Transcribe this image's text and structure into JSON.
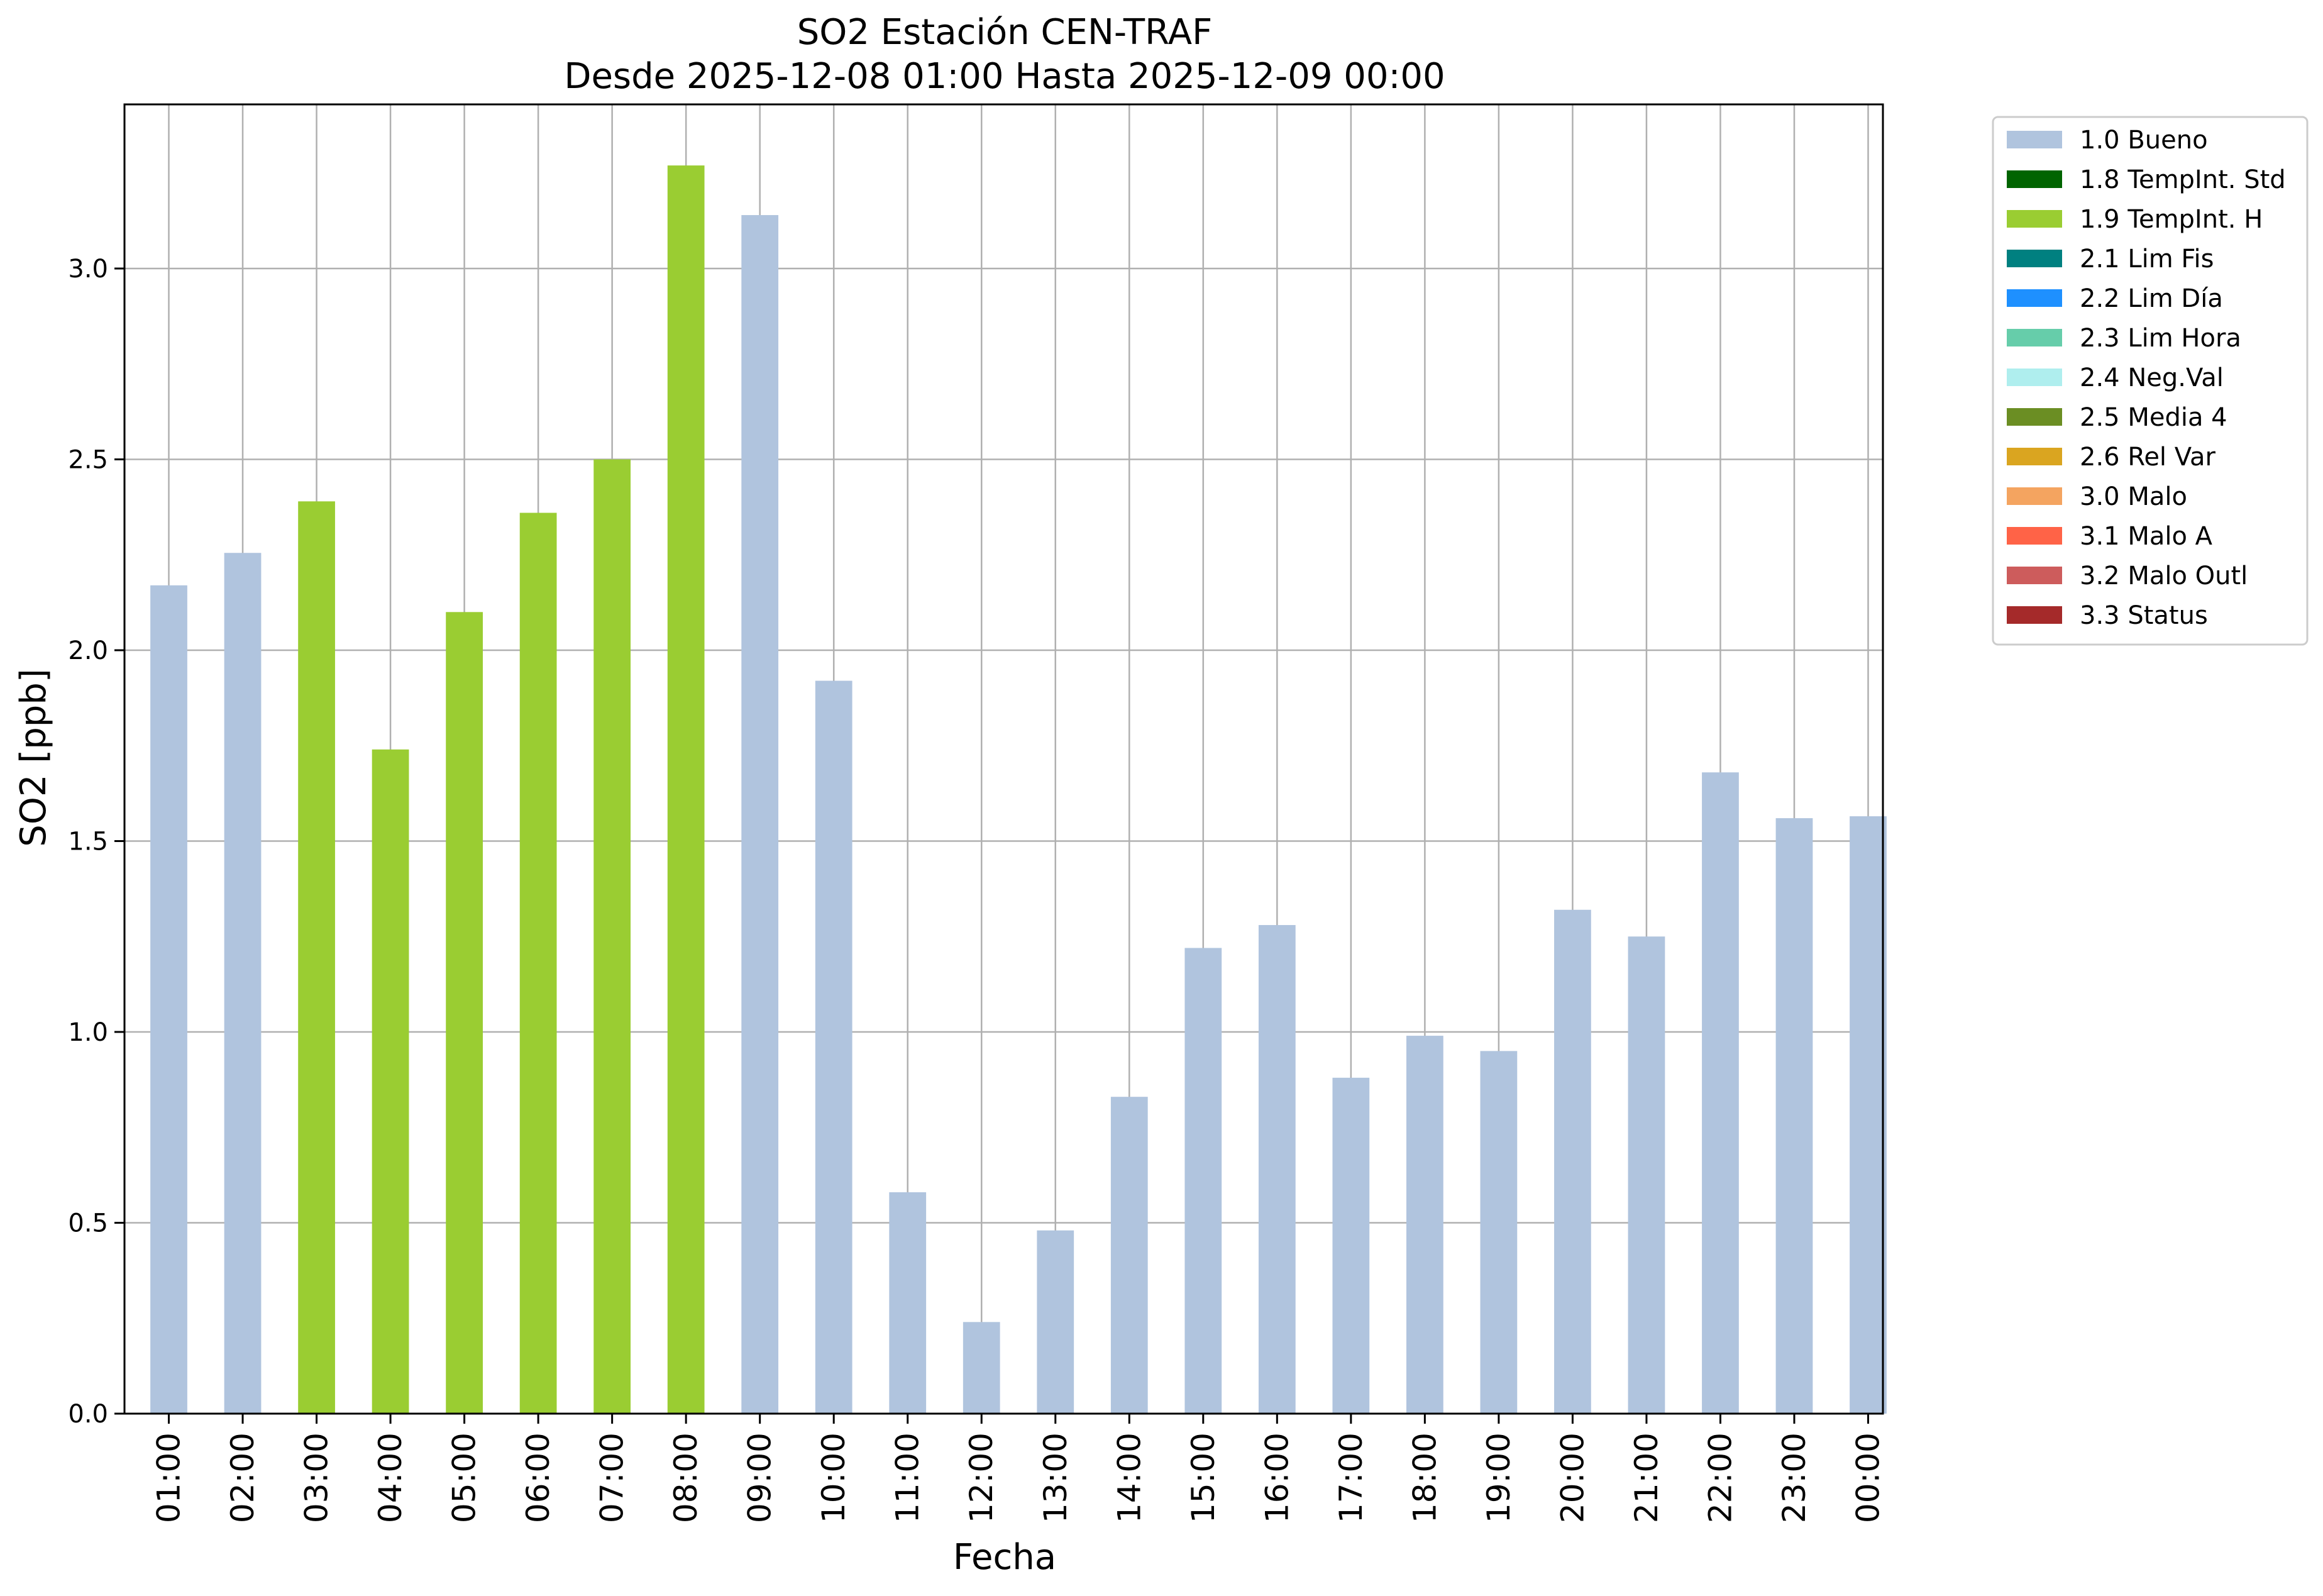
{
  "chart_data": {
    "type": "bar",
    "title": "SO2 Estación CEN-TRAF",
    "subtitle": "Desde 2025-12-08 01:00 Hasta 2025-12-09 00:00",
    "xlabel": "Fecha",
    "ylabel": "SO2 [ppb]",
    "ylim": [
      0,
      3.43
    ],
    "yticks": [
      "0.0",
      "0.5",
      "1.0",
      "1.5",
      "2.0",
      "2.5",
      "3.0"
    ],
    "ytick_values": [
      0,
      0.5,
      1.0,
      1.5,
      2.0,
      2.5,
      3.0
    ],
    "grid": true,
    "legend_position": "outside-right",
    "categories": [
      "01:00",
      "02:00",
      "03:00",
      "04:00",
      "05:00",
      "06:00",
      "07:00",
      "08:00",
      "09:00",
      "10:00",
      "11:00",
      "12:00",
      "13:00",
      "14:00",
      "15:00",
      "16:00",
      "17:00",
      "18:00",
      "19:00",
      "20:00",
      "21:00",
      "22:00",
      "23:00",
      "00:00"
    ],
    "values": [
      2.17,
      2.255,
      2.39,
      1.74,
      2.1,
      2.36,
      2.5,
      3.27,
      3.14,
      1.92,
      0.58,
      0.24,
      0.48,
      0.83,
      1.22,
      1.28,
      0.88,
      0.99,
      0.95,
      1.32,
      1.25,
      1.68,
      1.56,
      1.565
    ],
    "flags": [
      "1.0",
      "1.0",
      "1.9",
      "1.9",
      "1.9",
      "1.9",
      "1.9",
      "1.9",
      "1.0",
      "1.0",
      "1.0",
      "1.0",
      "1.0",
      "1.0",
      "1.0",
      "1.0",
      "1.0",
      "1.0",
      "1.0",
      "1.0",
      "1.0",
      "1.0",
      "1.0",
      "1.0"
    ],
    "legend": [
      {
        "code": "1.0",
        "label": "1.0 Bueno",
        "color": "#b0c4de"
      },
      {
        "code": "1.8",
        "label": "1.8 TempInt. Std",
        "color": "#006400"
      },
      {
        "code": "1.9",
        "label": "1.9 TempInt. H",
        "color": "#9acd32"
      },
      {
        "code": "2.1",
        "label": "2.1 Lim Fis",
        "color": "#008080"
      },
      {
        "code": "2.2",
        "label": "2.2 Lim Día",
        "color": "#1e90ff"
      },
      {
        "code": "2.3",
        "label": "2.3 Lim Hora",
        "color": "#66cdaa"
      },
      {
        "code": "2.4",
        "label": "2.4 Neg.Val",
        "color": "#afeeee"
      },
      {
        "code": "2.5",
        "label": "2.5 Media 4",
        "color": "#6b8e23"
      },
      {
        "code": "2.6",
        "label": "2.6 Rel Var",
        "color": "#daa520"
      },
      {
        "code": "3.0",
        "label": "3.0 Malo",
        "color": "#f4a460"
      },
      {
        "code": "3.1",
        "label": "3.1 Malo A",
        "color": "#ff6347"
      },
      {
        "code": "3.2",
        "label": "3.2 Malo Outl",
        "color": "#cd5c5c"
      },
      {
        "code": "3.3",
        "label": "3.3 Status",
        "color": "#a52a2a"
      }
    ]
  }
}
